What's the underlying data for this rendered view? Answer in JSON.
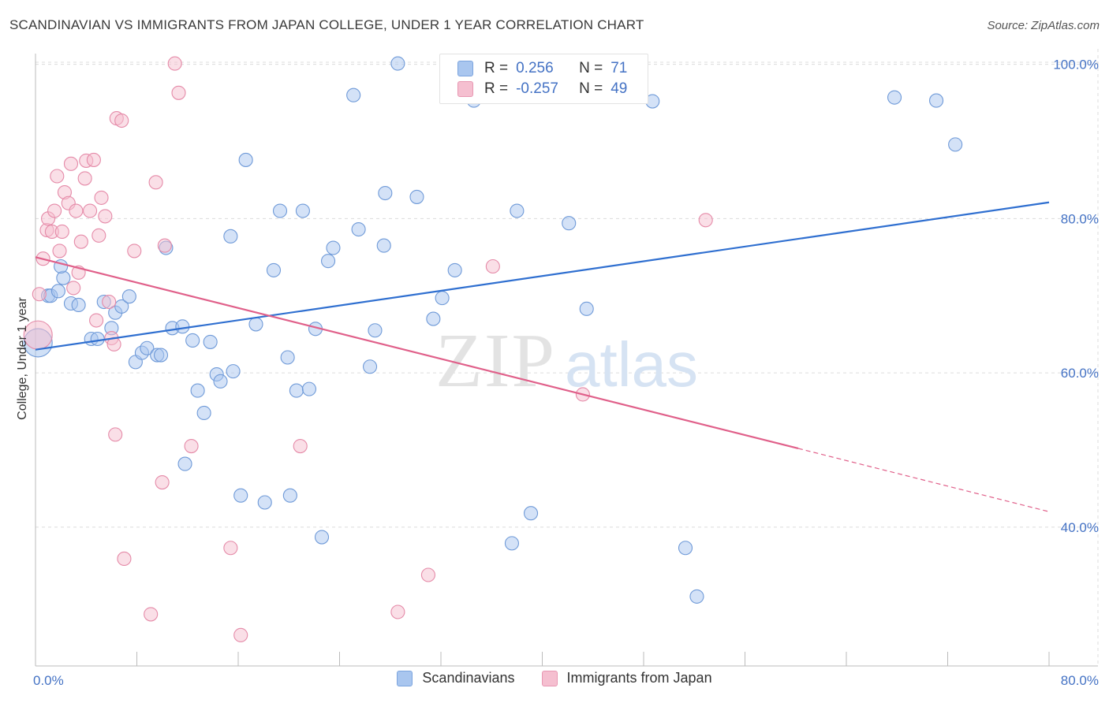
{
  "header": {
    "title": "SCANDINAVIAN VS IMMIGRANTS FROM JAPAN COLLEGE, UNDER 1 YEAR CORRELATION CHART",
    "source": "Source: ZipAtlas.com"
  },
  "watermark": {
    "zip": "ZIP",
    "atlas": "atlas"
  },
  "legend_stats": [
    {
      "r_label": "R =",
      "r_value": "0.256",
      "n_label": "N =",
      "n_value": "71",
      "color": "#a9c6ef",
      "border": "#7ba4de"
    },
    {
      "r_label": "R =",
      "r_value": "-0.257",
      "n_label": "N =",
      "n_value": "49",
      "color": "#f5bfd0",
      "border": "#e897b2"
    }
  ],
  "chart_data": {
    "type": "scatter",
    "title": "SCANDINAVIAN VS IMMIGRANTS FROM JAPAN COLLEGE, UNDER 1 YEAR CORRELATION CHART",
    "xlabel": "",
    "ylabel": "College, Under 1 year",
    "xlim": [
      0,
      80
    ],
    "ylim": [
      22,
      102
    ],
    "x_tick_labels": [
      "0.0%",
      "80.0%"
    ],
    "y_tick_labels": [
      "100.0%",
      "80.0%",
      "60.0%",
      "40.0%"
    ],
    "y_ticks": [
      100,
      80,
      60,
      40
    ],
    "grid": true,
    "legend_position": "top-center",
    "series": [
      {
        "name": "Scandinavians",
        "color": "#a9c6ef",
        "stroke": "#6f9ad8",
        "trend_color": "#2f6fd0",
        "trend": {
          "x0": 0,
          "y0": 63.0,
          "x1": 80,
          "y1": 82.1
        },
        "points": [
          [
            0.2,
            63.9
          ],
          [
            1.0,
            70.0
          ],
          [
            1.2,
            70.0
          ],
          [
            1.8,
            70.6
          ],
          [
            2.2,
            72.3
          ],
          [
            2.8,
            69.0
          ],
          [
            2.0,
            73.8
          ],
          [
            3.4,
            68.8
          ],
          [
            4.4,
            64.4
          ],
          [
            4.9,
            64.4
          ],
          [
            5.4,
            69.2
          ],
          [
            6.0,
            65.8
          ],
          [
            6.3,
            67.8
          ],
          [
            6.8,
            68.6
          ],
          [
            7.4,
            69.9
          ],
          [
            7.9,
            61.4
          ],
          [
            8.4,
            62.6
          ],
          [
            8.8,
            63.2
          ],
          [
            9.6,
            62.3
          ],
          [
            9.9,
            62.3
          ],
          [
            10.3,
            76.2
          ],
          [
            10.8,
            65.8
          ],
          [
            11.6,
            66.0
          ],
          [
            11.8,
            48.2
          ],
          [
            12.4,
            64.2
          ],
          [
            12.8,
            57.7
          ],
          [
            13.3,
            54.8
          ],
          [
            13.8,
            64.0
          ],
          [
            14.3,
            59.8
          ],
          [
            14.6,
            58.9
          ],
          [
            15.4,
            77.7
          ],
          [
            15.6,
            60.2
          ],
          [
            16.2,
            44.1
          ],
          [
            16.6,
            87.6
          ],
          [
            17.4,
            66.3
          ],
          [
            18.1,
            43.2
          ],
          [
            18.8,
            73.3
          ],
          [
            19.3,
            81.0
          ],
          [
            19.9,
            62.0
          ],
          [
            20.1,
            44.1
          ],
          [
            20.6,
            57.7
          ],
          [
            21.1,
            81.0
          ],
          [
            21.6,
            57.9
          ],
          [
            22.1,
            65.7
          ],
          [
            22.6,
            38.7
          ],
          [
            23.1,
            74.5
          ],
          [
            23.5,
            76.2
          ],
          [
            25.1,
            96.0
          ],
          [
            25.5,
            78.6
          ],
          [
            26.4,
            60.8
          ],
          [
            26.8,
            65.5
          ],
          [
            27.5,
            76.5
          ],
          [
            27.6,
            83.3
          ],
          [
            28.6,
            100.1
          ],
          [
            30.1,
            82.8
          ],
          [
            31.4,
            67.0
          ],
          [
            32.1,
            69.7
          ],
          [
            33.1,
            73.3
          ],
          [
            34.6,
            95.3
          ],
          [
            37.6,
            37.9
          ],
          [
            38.0,
            81.0
          ],
          [
            39.1,
            41.8
          ],
          [
            42.1,
            79.4
          ],
          [
            43.5,
            68.3
          ],
          [
            47.8,
            100.1
          ],
          [
            48.7,
            95.2
          ],
          [
            51.3,
            37.3
          ],
          [
            52.2,
            31.0
          ],
          [
            67.8,
            95.7
          ],
          [
            71.1,
            95.3
          ],
          [
            72.6,
            89.6
          ]
        ]
      },
      {
        "name": "Immigrants from Japan",
        "color": "#f5bfd0",
        "stroke": "#e58aa8",
        "trend_color": "#e0608a",
        "trend": {
          "x0": 0,
          "y0": 75.0,
          "x1": 60.2,
          "y1": 50.2
        },
        "trend_dash": {
          "x0": 60.2,
          "y0": 50.2,
          "x1": 80,
          "y1": 42.0
        },
        "points": [
          [
            0.2,
            64.9
          ],
          [
            0.3,
            70.2
          ],
          [
            0.6,
            74.8
          ],
          [
            0.9,
            78.5
          ],
          [
            1.0,
            80.0
          ],
          [
            1.3,
            78.3
          ],
          [
            1.5,
            81.0
          ],
          [
            1.7,
            85.5
          ],
          [
            1.9,
            75.8
          ],
          [
            2.1,
            78.3
          ],
          [
            2.3,
            83.4
          ],
          [
            2.6,
            82.0
          ],
          [
            2.8,
            87.1
          ],
          [
            3.0,
            71.0
          ],
          [
            3.2,
            81.0
          ],
          [
            3.4,
            73.0
          ],
          [
            3.6,
            77.0
          ],
          [
            3.9,
            85.2
          ],
          [
            4.0,
            87.5
          ],
          [
            4.3,
            81.0
          ],
          [
            4.6,
            87.6
          ],
          [
            4.8,
            66.8
          ],
          [
            5.0,
            77.8
          ],
          [
            5.2,
            82.7
          ],
          [
            5.5,
            80.3
          ],
          [
            5.8,
            69.2
          ],
          [
            6.0,
            64.5
          ],
          [
            6.2,
            63.7
          ],
          [
            6.3,
            52.0
          ],
          [
            6.4,
            93.0
          ],
          [
            6.8,
            92.7
          ],
          [
            7.0,
            35.9
          ],
          [
            7.8,
            75.8
          ],
          [
            9.1,
            28.7
          ],
          [
            9.5,
            84.7
          ],
          [
            10.0,
            45.8
          ],
          [
            10.2,
            76.5
          ],
          [
            11.0,
            100.1
          ],
          [
            11.3,
            96.3
          ],
          [
            12.3,
            50.5
          ],
          [
            15.4,
            37.3
          ],
          [
            16.2,
            26.0
          ],
          [
            20.9,
            50.5
          ],
          [
            28.6,
            29.0
          ],
          [
            31.0,
            33.8
          ],
          [
            34.6,
            97.0
          ],
          [
            36.1,
            73.8
          ],
          [
            43.2,
            57.2
          ],
          [
            52.9,
            79.8
          ]
        ]
      }
    ]
  },
  "bottom_legend": [
    {
      "label": "Scandinavians",
      "color": "#a9c6ef",
      "border": "#7ba4de"
    },
    {
      "label": "Immigrants from Japan",
      "color": "#f5bfd0",
      "border": "#e897b2"
    }
  ]
}
